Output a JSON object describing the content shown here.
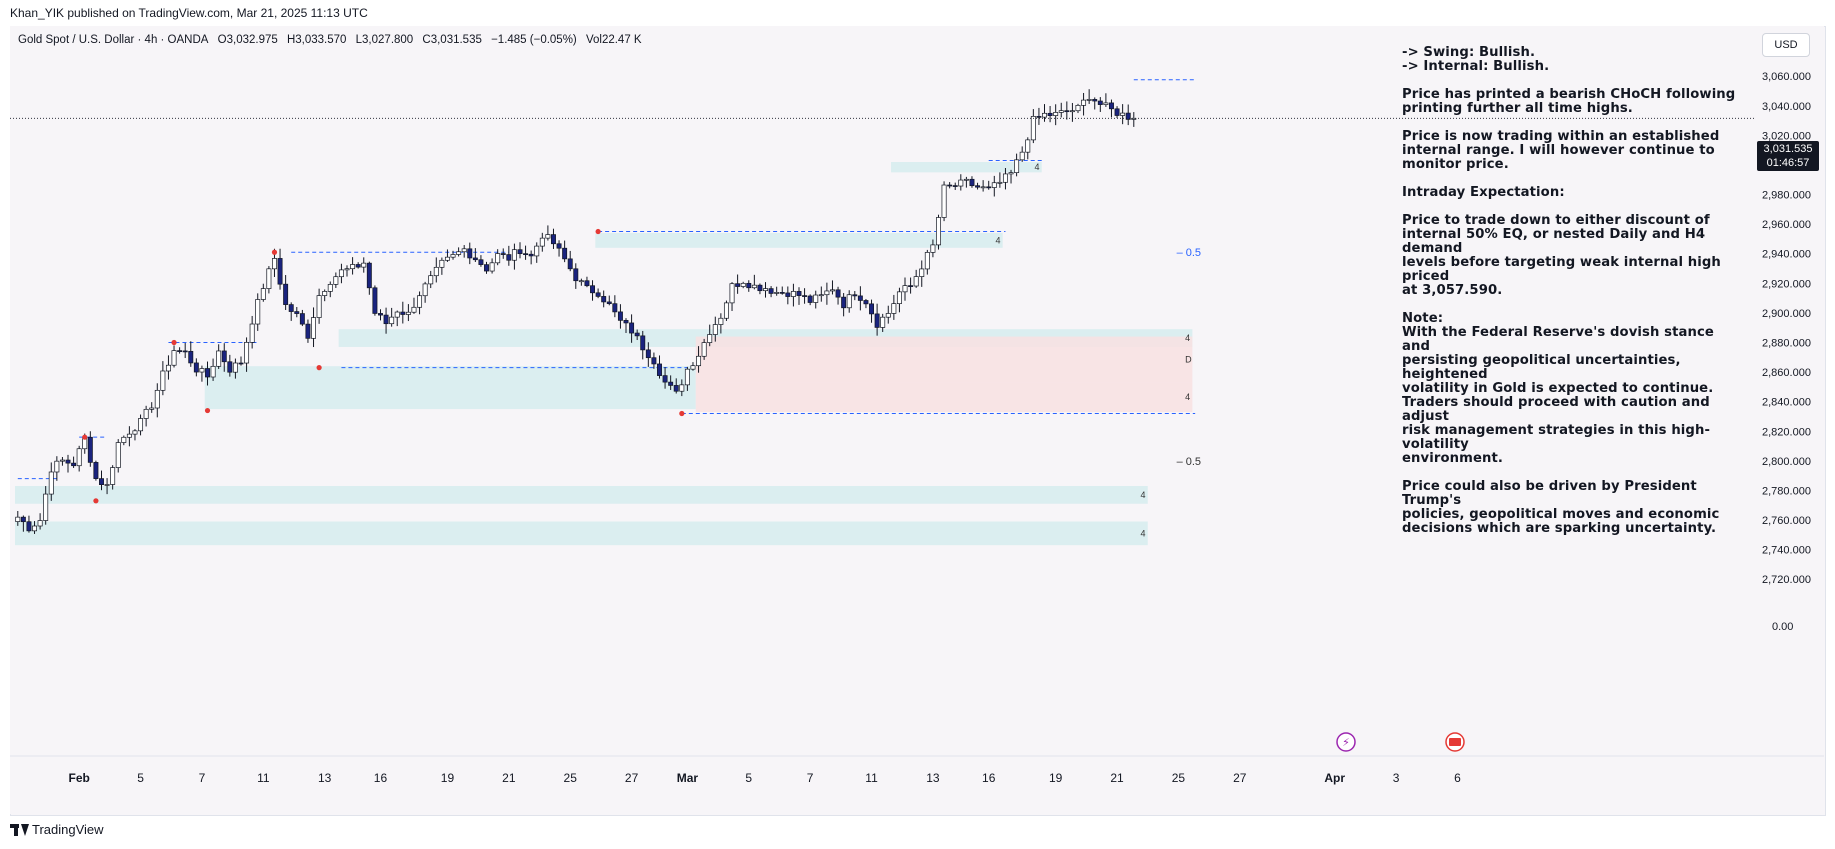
{
  "publisher": "Khan_YIK published on TradingView.com, Mar 21, 2025 11:13 UTC",
  "header": {
    "symbol": "Gold Spot / U.S. Dollar · 4h · OANDA",
    "open": "O3,032.975",
    "high": "H3,033.570",
    "low": "L3,027.800",
    "close": "C3,031.535",
    "change": "−1.485 (−0.05%)",
    "volume": "Vol22.47 K"
  },
  "currency": "USD",
  "price_tag": {
    "price": "3,031.535",
    "countdown": "01:46:57"
  },
  "notes": [
    "-> Swing:  Bullish.\n-> Internal:  Bullish.",
    "Price has printed a bearish CHoCH following\nprinting further all time highs.",
    "Price is now trading within an established\ninternal range.  I will however continue to\nmonitor price.",
    "Intraday Expectation:",
    "Price to trade down to either discount of\ninternal 50% EQ, or nested Daily and H4 demand\nlevels before targeting weak internal high priced\nat 3,057.590.",
    "Note:\nWith the Federal Reserve's dovish stance and\npersisting geopolitical uncertainties, heightened\nvolatility in Gold is expected to continue.\nTraders should proceed with caution and adjust\nrisk management strategies in this high-volatility\nenvironment.",
    "Price could also be driven by President Trump's\npolicies, geopolitical moves and economic\ndecisions which are sparking uncertainty."
  ],
  "footer": {
    "brand": "TradingView"
  },
  "colors": {
    "bull_candle": "#ffffff",
    "bear_candle": "#1a237e",
    "wick": "#131722",
    "zone_demand": "#d6ecee",
    "zone_supply": "#f8e0e2",
    "level_line": "#2962ff",
    "swing_marker": "#e53935",
    "last_price_line": "#131722"
  },
  "chart_data": {
    "type": "candlestick",
    "title": "Gold Spot / U.S. Dollar · 4h · OANDA",
    "xlabel": "",
    "ylabel": "",
    "y_ticks": [
      "3,060.000",
      "3,040.000",
      "3,020.000",
      "3,000.000",
      "2,980.000",
      "2,960.000",
      "2,940.000",
      "2,920.000",
      "2,900.000",
      "2,880.000",
      "2,860.000",
      "2,840.000",
      "2,820.000",
      "2,800.000",
      "2,780.000",
      "2,760.000",
      "2,740.000",
      "2,720.000"
    ],
    "y_tick_values": [
      3060,
      3040,
      3020,
      3000,
      2980,
      2960,
      2940,
      2920,
      2900,
      2880,
      2860,
      2840,
      2820,
      2800,
      2780,
      2760,
      2740,
      2720
    ],
    "y_axis_zero_label": "0.00",
    "ylim": [
      2710,
      3075
    ],
    "x_ticks": [
      {
        "label": "Feb",
        "bar": 11,
        "bold": true
      },
      {
        "label": "5",
        "bar": 22
      },
      {
        "label": "7",
        "bar": 33
      },
      {
        "label": "11",
        "bar": 44
      },
      {
        "label": "13",
        "bar": 55
      },
      {
        "label": "16",
        "bar": 65
      },
      {
        "label": "19",
        "bar": 77
      },
      {
        "label": "21",
        "bar": 88
      },
      {
        "label": "25",
        "bar": 99
      },
      {
        "label": "27",
        "bar": 110
      },
      {
        "label": "Mar",
        "bar": 120,
        "bold": true
      },
      {
        "label": "5",
        "bar": 131
      },
      {
        "label": "7",
        "bar": 142
      },
      {
        "label": "11",
        "bar": 153
      },
      {
        "label": "13",
        "bar": 164
      },
      {
        "label": "16",
        "bar": 174
      },
      {
        "label": "19",
        "bar": 186
      },
      {
        "label": "21",
        "bar": 197
      },
      {
        "label": "25",
        "bar": 208
      },
      {
        "label": "27",
        "bar": 219
      },
      {
        "label": "Apr",
        "bar": 236,
        "bold": true
      },
      {
        "label": "3",
        "bar": 247
      },
      {
        "label": "6",
        "bar": 258
      }
    ],
    "last_price": 3031.535,
    "waypoints": [
      [
        0,
        2762
      ],
      [
        2,
        2755
      ],
      [
        4,
        2760
      ],
      [
        6,
        2795
      ],
      [
        8,
        2800
      ],
      [
        10,
        2798
      ],
      [
        12,
        2815
      ],
      [
        14,
        2788
      ],
      [
        16,
        2783
      ],
      [
        18,
        2812
      ],
      [
        20,
        2820
      ],
      [
        22,
        2826
      ],
      [
        24,
        2838
      ],
      [
        26,
        2858
      ],
      [
        28,
        2875
      ],
      [
        30,
        2873
      ],
      [
        32,
        2862
      ],
      [
        34,
        2857
      ],
      [
        36,
        2874
      ],
      [
        38,
        2862
      ],
      [
        40,
        2867
      ],
      [
        42,
        2895
      ],
      [
        44,
        2918
      ],
      [
        46,
        2937
      ],
      [
        48,
        2905
      ],
      [
        50,
        2898
      ],
      [
        52,
        2885
      ],
      [
        54,
        2912
      ],
      [
        56,
        2922
      ],
      [
        58,
        2928
      ],
      [
        60,
        2930
      ],
      [
        62,
        2934
      ],
      [
        64,
        2900
      ],
      [
        66,
        2893
      ],
      [
        68,
        2902
      ],
      [
        70,
        2899
      ],
      [
        72,
        2913
      ],
      [
        74,
        2923
      ],
      [
        76,
        2933
      ],
      [
        78,
        2938
      ],
      [
        80,
        2943
      ],
      [
        82,
        2937
      ],
      [
        84,
        2930
      ],
      [
        86,
        2939
      ],
      [
        88,
        2937
      ],
      [
        90,
        2943
      ],
      [
        92,
        2938
      ],
      [
        94,
        2953
      ],
      [
        96,
        2947
      ],
      [
        98,
        2936
      ],
      [
        100,
        2924
      ],
      [
        102,
        2916
      ],
      [
        104,
        2914
      ],
      [
        106,
        2905
      ],
      [
        108,
        2894
      ],
      [
        110,
        2888
      ],
      [
        112,
        2877
      ],
      [
        114,
        2868
      ],
      [
        116,
        2853
      ],
      [
        118,
        2845
      ],
      [
        120,
        2862
      ],
      [
        122,
        2872
      ],
      [
        124,
        2888
      ],
      [
        126,
        2898
      ],
      [
        128,
        2918
      ],
      [
        130,
        2922
      ],
      [
        132,
        2918
      ],
      [
        134,
        2917
      ],
      [
        136,
        2914
      ],
      [
        138,
        2914
      ],
      [
        140,
        2912
      ],
      [
        142,
        2908
      ],
      [
        144,
        2911
      ],
      [
        146,
        2917
      ],
      [
        148,
        2906
      ],
      [
        150,
        2914
      ],
      [
        152,
        2908
      ],
      [
        154,
        2893
      ],
      [
        156,
        2900
      ],
      [
        158,
        2914
      ],
      [
        160,
        2918
      ],
      [
        162,
        2932
      ],
      [
        164,
        2945
      ],
      [
        166,
        2984
      ],
      [
        168,
        2986
      ],
      [
        170,
        2988
      ],
      [
        172,
        2985
      ],
      [
        174,
        2983
      ],
      [
        176,
        2988
      ],
      [
        178,
        2994
      ],
      [
        180,
        3009
      ],
      [
        182,
        3030
      ],
      [
        184,
        3034
      ],
      [
        186,
        3034
      ],
      [
        188,
        3036
      ],
      [
        190,
        3038
      ],
      [
        192,
        3047
      ],
      [
        194,
        3041
      ],
      [
        196,
        3037
      ],
      [
        198,
        3034
      ],
      [
        200,
        3031.535
      ]
    ],
    "overlays": {
      "demand_zones": [
        {
          "from_bar": 0,
          "to_bar": 203,
          "top": 2783,
          "bottom": 2771,
          "label": "4"
        },
        {
          "from_bar": 0,
          "to_bar": 203,
          "top": 2759,
          "bottom": 2743,
          "label": "4"
        },
        {
          "from_bar": 58,
          "to_bar": 211,
          "top": 2889,
          "bottom": 2877,
          "label": "4"
        },
        {
          "from_bar": 34,
          "to_bar": 122,
          "top": 2864,
          "bottom": 2835,
          "label": ""
        },
        {
          "from_bar": 104,
          "to_bar": 177,
          "top": 2954,
          "bottom": 2944,
          "label": "4"
        },
        {
          "from_bar": 157,
          "to_bar": 184,
          "top": 3002,
          "bottom": 2995,
          "label": "4"
        }
      ],
      "supply_zones": [
        {
          "from_bar": 122,
          "to_bar": 211,
          "top": 2884,
          "bottom": 2853,
          "label": "D"
        },
        {
          "from_bar": 122,
          "to_bar": 211,
          "top": 2853,
          "bottom": 2833,
          "label": "4"
        }
      ],
      "dashed_levels": [
        {
          "from_bar": 0,
          "to_bar": 7,
          "price": 2788
        },
        {
          "from_bar": 49,
          "to_bar": 88,
          "price": 2941
        },
        {
          "from_bar": 104,
          "to_bar": 177,
          "price": 2955
        },
        {
          "from_bar": 58,
          "to_bar": 120,
          "price": 2863
        },
        {
          "from_bar": 119,
          "to_bar": 211,
          "price": 2832
        },
        {
          "from_bar": 200,
          "to_bar": 211,
          "price": 3057.59
        },
        {
          "from_bar": 27,
          "to_bar": 43,
          "price": 2880
        },
        {
          "from_bar": 11,
          "to_bar": 16,
          "price": 2816
        },
        {
          "from_bar": 174,
          "to_bar": 184,
          "price": 3003
        }
      ],
      "swing_points": [
        {
          "bar": 12,
          "price": 2816
        },
        {
          "bar": 14,
          "price": 2773
        },
        {
          "bar": 28,
          "price": 2880
        },
        {
          "bar": 34,
          "price": 2834
        },
        {
          "bar": 46,
          "price": 2941
        },
        {
          "bar": 54,
          "price": 2863
        },
        {
          "bar": 104,
          "price": 2955
        },
        {
          "bar": 119,
          "price": 2832
        }
      ],
      "eq_labels": [
        {
          "bar": 210,
          "price": 2941,
          "label": "– 0.5"
        },
        {
          "bar": 210,
          "price": 2800,
          "label": "– 0.5"
        }
      ]
    }
  }
}
